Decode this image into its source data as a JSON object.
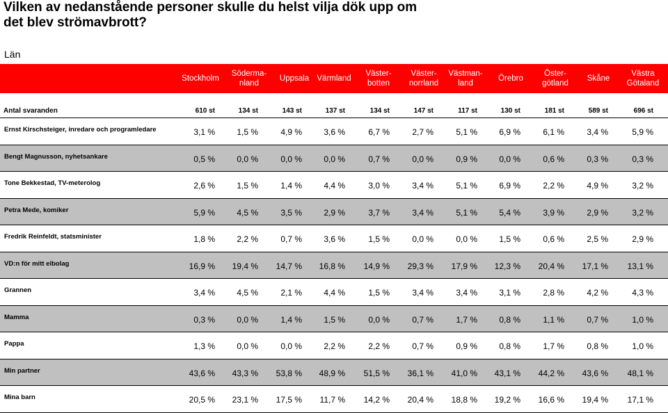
{
  "title": "Vilken av nedanstående personer skulle du helst vilja dök upp om det blev strömavbrott?",
  "region_label": "Län",
  "colors": {
    "header_bg": "#ff0000",
    "header_text": "#ffffff",
    "band_gray": "#c0c0c0"
  },
  "chart_data": {
    "type": "table",
    "columns": [
      "Stockholm",
      "Söderma-\nnland",
      "Uppsala",
      "Värmland",
      "Väster-\nbotten",
      "Väster-\nnorrland",
      "Västman-\nland",
      "Örebro",
      "Öster-\ngötland",
      "Skåne",
      "Västra\nGötaland"
    ],
    "respondents_label": "Antal svaranden",
    "respondents": [
      "610 st",
      "134 st",
      "143 st",
      "137 st",
      "134 st",
      "147 st",
      "117 st",
      "130 st",
      "181 st",
      "589 st",
      "696 st"
    ],
    "rows": [
      {
        "label": "Ernst Kirschsteiger, inredare och programledare",
        "values": [
          "3,1 %",
          "1,5 %",
          "4,9 %",
          "3,6 %",
          "6,7 %",
          "2,7 %",
          "5,1 %",
          "6,9 %",
          "6,1 %",
          "3,4 %",
          "5,9 %"
        ]
      },
      {
        "label": "Bengt Magnusson, nyhetsankare",
        "values": [
          "0,5 %",
          "0,0 %",
          "0,0 %",
          "0,0 %",
          "0,7 %",
          "0,0 %",
          "0,9 %",
          "0,0 %",
          "0,6 %",
          "0,3 %",
          "0,3 %"
        ]
      },
      {
        "label": "Tone Bekkestad, TV-meterolog",
        "values": [
          "2,6 %",
          "1,5 %",
          "1,4 %",
          "4,4 %",
          "3,0 %",
          "3,4 %",
          "5,1 %",
          "6,9 %",
          "2,2 %",
          "4,9 %",
          "3,2 %"
        ]
      },
      {
        "label": "Petra Mede, komiker",
        "values": [
          "5,9 %",
          "4,5 %",
          "3,5 %",
          "2,9 %",
          "3,7 %",
          "3,4 %",
          "5,1 %",
          "5,4 %",
          "3,9 %",
          "2,9 %",
          "3,2 %"
        ]
      },
      {
        "label": "Fredrik Reinfeldt, statsminister",
        "values": [
          "1,8 %",
          "2,2 %",
          "0,7 %",
          "3,6 %",
          "1,5 %",
          "0,0 %",
          "0,0 %",
          "1,5 %",
          "0,6 %",
          "2,5 %",
          "2,9 %"
        ]
      },
      {
        "label": "VD:n för mitt elbolag",
        "values": [
          "16,9 %",
          "19,4 %",
          "14,7 %",
          "16,8 %",
          "14,9 %",
          "29,3 %",
          "17,9 %",
          "12,3 %",
          "20,4 %",
          "17,1 %",
          "13,1 %"
        ]
      },
      {
        "label": "Grannen",
        "values": [
          "3,4 %",
          "4,5 %",
          "2,1 %",
          "4,4 %",
          "1,5 %",
          "3,4 %",
          "3,4 %",
          "3,1 %",
          "2,8 %",
          "4,2 %",
          "4,3 %"
        ]
      },
      {
        "label": "Mamma",
        "values": [
          "0,3 %",
          "0,0 %",
          "1,4 %",
          "1,5 %",
          "0,0 %",
          "0,7 %",
          "1,7 %",
          "0,8 %",
          "1,1 %",
          "0,7 %",
          "1,0 %"
        ]
      },
      {
        "label": "Pappa",
        "values": [
          "1,3 %",
          "0,0 %",
          "0,0 %",
          "2,2 %",
          "2,2 %",
          "0,7 %",
          "0,9 %",
          "0,8 %",
          "1,7 %",
          "0,8 %",
          "1,0 %"
        ]
      },
      {
        "label": "Min partner",
        "values": [
          "43,6 %",
          "43,3 %",
          "53,8 %",
          "48,9 %",
          "51,5 %",
          "36,1 %",
          "41,0 %",
          "43,1 %",
          "44,2 %",
          "43,6 %",
          "48,1 %"
        ]
      },
      {
        "label": "Mina barn",
        "values": [
          "20,5 %",
          "23,1 %",
          "17,5 %",
          "11,7 %",
          "14,2 %",
          "20,4 %",
          "18,8 %",
          "19,2 %",
          "16,6 %",
          "19,4 %",
          "17,1 %"
        ]
      }
    ]
  }
}
